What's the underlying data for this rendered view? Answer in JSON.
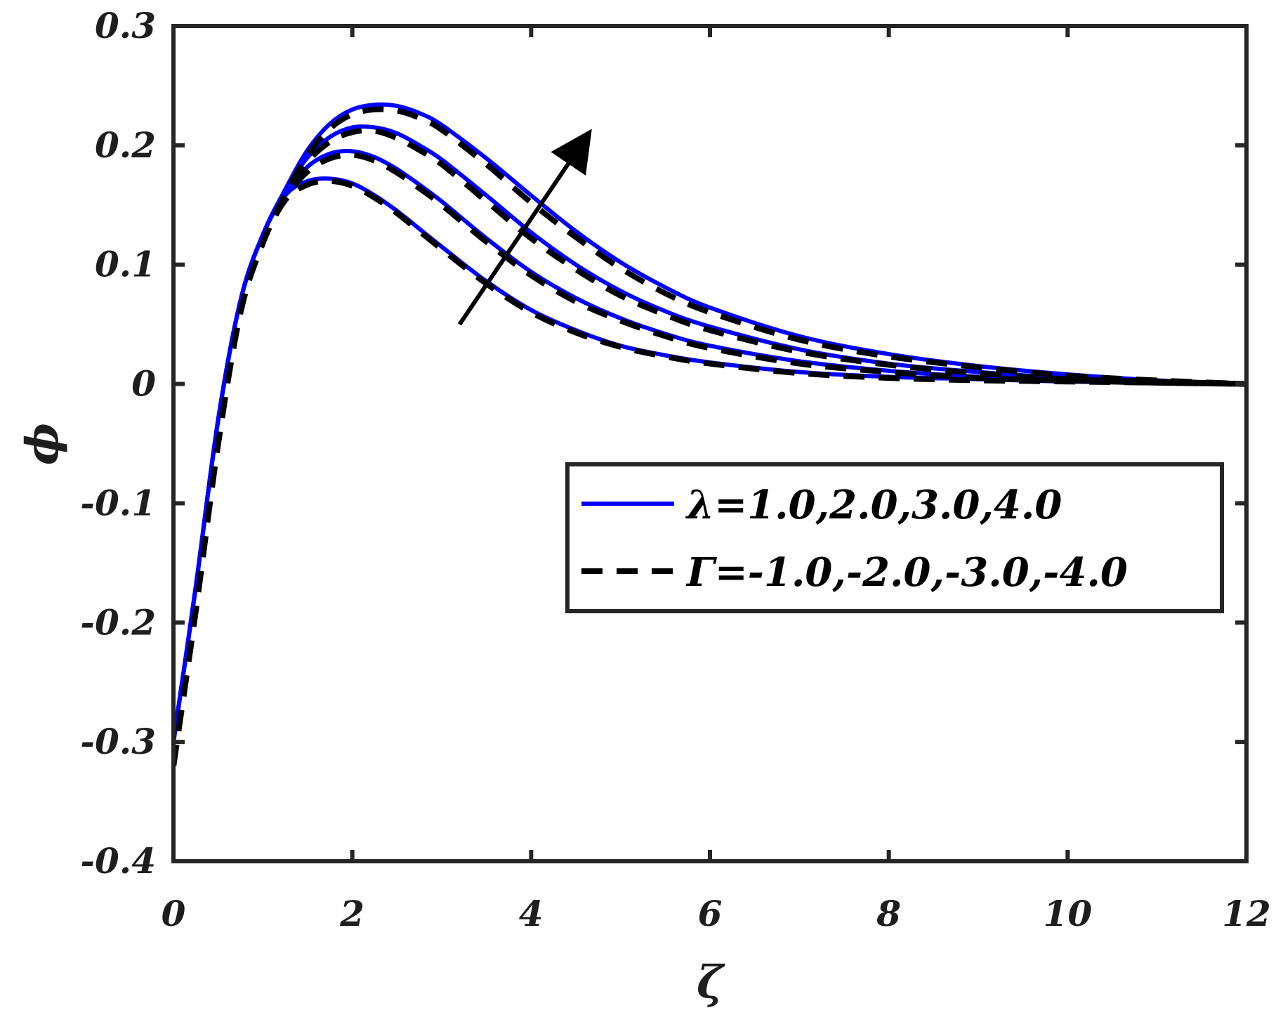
{
  "chart_data": {
    "type": "line",
    "xlabel": "ζ",
    "ylabel": "ϕ",
    "xlim": [
      0,
      12
    ],
    "ylim": [
      -0.4,
      0.3
    ],
    "xticks": [
      0,
      2,
      4,
      6,
      8,
      10,
      12
    ],
    "xtick_labels": [
      "0",
      "2",
      "4",
      "6",
      "8",
      "10",
      "12"
    ],
    "yticks": [
      -0.4,
      -0.3,
      -0.2,
      -0.1,
      0,
      0.1,
      0.2,
      0.3
    ],
    "ytick_labels": [
      "-0.4",
      "-0.3",
      "-0.2",
      "-0.1",
      "0",
      "0.1",
      "0.2",
      "0.3"
    ],
    "grid": false,
    "legend_position": "center-right",
    "legend": [
      {
        "label": "λ=1.0,2.0,3.0,4.0",
        "color": "#0000ff",
        "style": "solid"
      },
      {
        "label": "Γ=-1.0,-2.0,-3.0,-4.0",
        "color": "#000000",
        "style": "dashed"
      }
    ],
    "annotation": {
      "type": "arrow",
      "direction": "increasing parameter",
      "from": [
        3.2,
        0.05
      ],
      "to": [
        4.6,
        0.205
      ]
    },
    "x": [
      0,
      0.25,
      0.5,
      0.75,
      1.0,
      1.25,
      1.5,
      1.75,
      2.0,
      2.25,
      2.5,
      2.75,
      3.0,
      3.5,
      4.0,
      4.5,
      5.0,
      5.5,
      6.0,
      7.0,
      8.0,
      9.0,
      10.0,
      11.0,
      12.0
    ],
    "series": [
      {
        "group": "lambda",
        "color": "#0000ff",
        "style": "solid",
        "values": [
          -0.3,
          -0.17,
          -0.03,
          0.07,
          0.125,
          0.158,
          0.17,
          0.172,
          0.168,
          0.158,
          0.145,
          0.13,
          0.115,
          0.086,
          0.062,
          0.045,
          0.032,
          0.024,
          0.018,
          0.01,
          0.006,
          0.004,
          0.002,
          0.001,
          0.0
        ]
      },
      {
        "group": "lambda",
        "color": "#0000ff",
        "style": "solid",
        "values": [
          -0.3,
          -0.17,
          -0.03,
          0.07,
          0.125,
          0.16,
          0.182,
          0.193,
          0.195,
          0.19,
          0.18,
          0.167,
          0.153,
          0.122,
          0.094,
          0.072,
          0.055,
          0.042,
          0.032,
          0.019,
          0.011,
          0.006,
          0.003,
          0.001,
          0.0
        ]
      },
      {
        "group": "lambda",
        "color": "#0000ff",
        "style": "solid",
        "values": [
          -0.3,
          -0.17,
          -0.03,
          0.07,
          0.125,
          0.162,
          0.19,
          0.207,
          0.215,
          0.215,
          0.21,
          0.2,
          0.188,
          0.158,
          0.127,
          0.1,
          0.078,
          0.061,
          0.048,
          0.029,
          0.017,
          0.01,
          0.005,
          0.002,
          0.0
        ]
      },
      {
        "group": "lambda",
        "color": "#0000ff",
        "style": "solid",
        "values": [
          -0.3,
          -0.17,
          -0.03,
          0.07,
          0.125,
          0.163,
          0.196,
          0.218,
          0.23,
          0.234,
          0.233,
          0.227,
          0.217,
          0.189,
          0.158,
          0.128,
          0.102,
          0.081,
          0.064,
          0.04,
          0.025,
          0.015,
          0.008,
          0.003,
          0.0
        ]
      },
      {
        "group": "gamma",
        "color": "#000000",
        "style": "dashed",
        "values": [
          -0.32,
          -0.19,
          -0.05,
          0.06,
          0.118,
          0.154,
          0.167,
          0.17,
          0.166,
          0.156,
          0.143,
          0.128,
          0.113,
          0.084,
          0.06,
          0.043,
          0.031,
          0.023,
          0.017,
          0.009,
          0.005,
          0.003,
          0.002,
          0.001,
          0.0
        ]
      },
      {
        "group": "gamma",
        "color": "#000000",
        "style": "dashed",
        "values": [
          -0.32,
          -0.19,
          -0.05,
          0.06,
          0.118,
          0.156,
          0.178,
          0.189,
          0.192,
          0.187,
          0.177,
          0.164,
          0.15,
          0.119,
          0.091,
          0.069,
          0.053,
          0.04,
          0.03,
          0.017,
          0.01,
          0.005,
          0.003,
          0.001,
          0.0
        ]
      },
      {
        "group": "gamma",
        "color": "#000000",
        "style": "dashed",
        "values": [
          -0.32,
          -0.19,
          -0.05,
          0.06,
          0.118,
          0.158,
          0.186,
          0.203,
          0.211,
          0.212,
          0.206,
          0.196,
          0.184,
          0.153,
          0.122,
          0.096,
          0.074,
          0.058,
          0.045,
          0.027,
          0.016,
          0.009,
          0.004,
          0.002,
          0.0
        ]
      },
      {
        "group": "gamma",
        "color": "#000000",
        "style": "dashed",
        "values": [
          -0.32,
          -0.19,
          -0.05,
          0.06,
          0.118,
          0.159,
          0.192,
          0.214,
          0.226,
          0.23,
          0.229,
          0.223,
          0.213,
          0.184,
          0.152,
          0.123,
          0.097,
          0.076,
          0.06,
          0.037,
          0.023,
          0.014,
          0.007,
          0.003,
          0.0
        ]
      }
    ]
  }
}
